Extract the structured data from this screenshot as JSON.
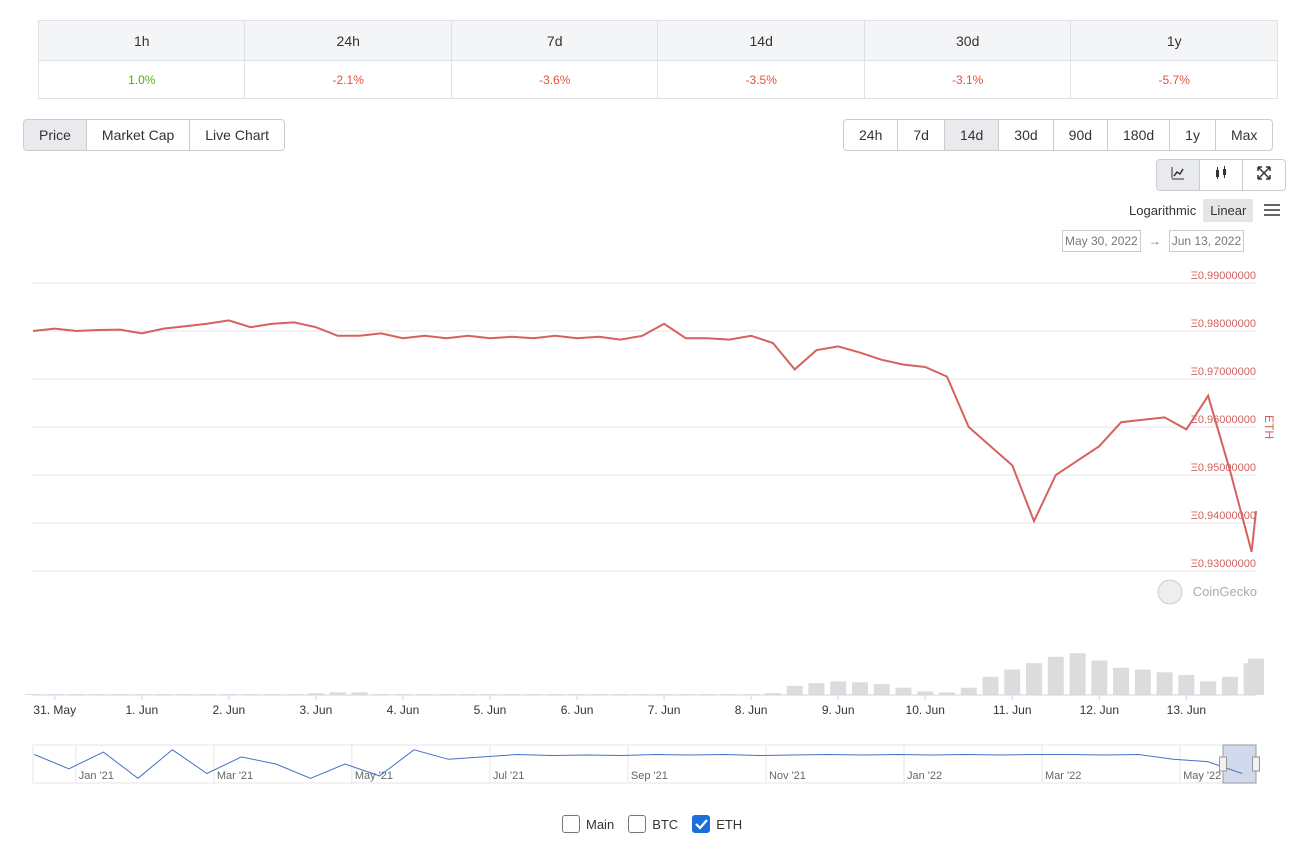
{
  "performance": {
    "headers": [
      "1h",
      "24h",
      "7d",
      "14d",
      "30d",
      "1y"
    ],
    "values": [
      "1.0%",
      "-2.1%",
      "-3.6%",
      "-3.5%",
      "-3.1%",
      "-5.7%"
    ],
    "value_colors": [
      "#4eaf0a",
      "#e15241",
      "#e15241",
      "#e15241",
      "#e15241",
      "#e15241"
    ]
  },
  "view_tabs": [
    "Price",
    "Market Cap",
    "Live Chart"
  ],
  "active_view": 0,
  "ranges": [
    "24h",
    "7d",
    "14d",
    "30d",
    "90d",
    "180d",
    "1y",
    "Max"
  ],
  "active_range": 2,
  "scale_options": [
    "Logarithmic",
    "Linear"
  ],
  "active_scale": 1,
  "date_from": "May 30, 2022",
  "date_arrow": "→",
  "date_to": "Jun 13, 2022",
  "watermark": "CoinGecko",
  "toggles": [
    {
      "label": "Main",
      "checked": false
    },
    {
      "label": "BTC",
      "checked": false
    },
    {
      "label": "ETH",
      "checked": true
    }
  ],
  "chart_data": {
    "type": "line",
    "y_axis_title": "ETH",
    "grid": true,
    "xlim": [
      -0.25,
      13.8
    ],
    "xticks": [
      {
        "value": 0,
        "label": "31. May"
      },
      {
        "value": 1,
        "label": "1. Jun"
      },
      {
        "value": 2,
        "label": "2. Jun"
      },
      {
        "value": 3,
        "label": "3. Jun"
      },
      {
        "value": 4,
        "label": "4. Jun"
      },
      {
        "value": 5,
        "label": "5. Jun"
      },
      {
        "value": 6,
        "label": "6. Jun"
      },
      {
        "value": 7,
        "label": "7. Jun"
      },
      {
        "value": 8,
        "label": "8. Jun"
      },
      {
        "value": 9,
        "label": "9. Jun"
      },
      {
        "value": 10,
        "label": "10. Jun"
      },
      {
        "value": 11,
        "label": "11. Jun"
      },
      {
        "value": 12,
        "label": "12. Jun"
      },
      {
        "value": 13,
        "label": "13. Jun"
      }
    ],
    "ylim": [
      0.93,
      0.99
    ],
    "yticks": [
      {
        "value": 0.99,
        "label": "Ξ0.99000000"
      },
      {
        "value": 0.98,
        "label": "Ξ0.98000000"
      },
      {
        "value": 0.97,
        "label": "Ξ0.97000000"
      },
      {
        "value": 0.96,
        "label": "Ξ0.96000000"
      },
      {
        "value": 0.95,
        "label": "Ξ0.95000000"
      },
      {
        "value": 0.94,
        "label": "Ξ0.94000000"
      },
      {
        "value": 0.93,
        "label": "Ξ0.93000000"
      }
    ],
    "x": [
      -0.25,
      0,
      0.25,
      0.5,
      0.75,
      1,
      1.25,
      1.5,
      1.75,
      2,
      2.25,
      2.5,
      2.75,
      3,
      3.25,
      3.5,
      3.75,
      4,
      4.25,
      4.5,
      4.75,
      5,
      5.25,
      5.5,
      5.75,
      6,
      6.25,
      6.5,
      6.75,
      7,
      7.25,
      7.5,
      7.75,
      8,
      8.25,
      8.5,
      8.75,
      9,
      9.25,
      9.5,
      9.75,
      10,
      10.25,
      10.5,
      10.75,
      11,
      11.25,
      11.5,
      11.75,
      12,
      12.25,
      12.5,
      12.75,
      13,
      13.25,
      13.5,
      13.75,
      13.8
    ],
    "series": [
      {
        "color": "#d4625e",
        "values": [
          0.98,
          0.9805,
          0.98,
          0.9802,
          0.9803,
          0.9795,
          0.9805,
          0.981,
          0.9815,
          0.9822,
          0.9808,
          0.9815,
          0.9818,
          0.9808,
          0.979,
          0.979,
          0.9795,
          0.9785,
          0.979,
          0.9785,
          0.979,
          0.9785,
          0.9788,
          0.9785,
          0.979,
          0.9785,
          0.9788,
          0.9782,
          0.979,
          0.9815,
          0.9785,
          0.9785,
          0.9782,
          0.979,
          0.9775,
          0.972,
          0.976,
          0.9768,
          0.9755,
          0.974,
          0.973,
          0.9725,
          0.9705,
          0.96,
          0.956,
          0.952,
          0.9404,
          0.95,
          0.953,
          0.956,
          0.961,
          0.9615,
          0.962,
          0.9595,
          0.9665,
          0.951,
          0.934,
          0.9425
        ]
      }
    ],
    "volume": {
      "color": "#dcdcdc",
      "ylim": [
        0,
        55
      ],
      "values": [
        1,
        1,
        1,
        1,
        1,
        1,
        1,
        1,
        1,
        1,
        1,
        1,
        1,
        2,
        3,
        3,
        1,
        1,
        1,
        1,
        1,
        1,
        1,
        1,
        1,
        1,
        1,
        1,
        1,
        1,
        1,
        1,
        1,
        1,
        2,
        10,
        13,
        15,
        14,
        12,
        8,
        4,
        3,
        8,
        20,
        28,
        35,
        42,
        46,
        38,
        30,
        28,
        25,
        22,
        15,
        20,
        35,
        40
      ]
    },
    "navigator": {
      "color": "#4572c4",
      "ylim": [
        0.92,
        1.0
      ],
      "xlim": [
        -0.62,
        17.1
      ],
      "xticks": [
        {
          "value": 0,
          "label": "Jan '21"
        },
        {
          "value": 2,
          "label": "Mar '21"
        },
        {
          "value": 4,
          "label": "May '21"
        },
        {
          "value": 6,
          "label": "Jul '21"
        },
        {
          "value": 8,
          "label": "Sep '21"
        },
        {
          "value": 10,
          "label": "Nov '21"
        },
        {
          "value": 12,
          "label": "Jan '22"
        },
        {
          "value": 14,
          "label": "Mar '22"
        },
        {
          "value": 16,
          "label": "May '22"
        }
      ],
      "x": [
        -0.6,
        -0.1,
        0.4,
        0.9,
        1.4,
        1.9,
        2.4,
        2.9,
        3.4,
        3.9,
        4.4,
        4.9,
        5.4,
        5.9,
        6.4,
        6.9,
        7.4,
        7.9,
        8.4,
        8.9,
        9.4,
        9.9,
        10.4,
        10.9,
        11.4,
        11.9,
        12.4,
        12.9,
        13.4,
        13.9,
        14.4,
        14.9,
        15.4,
        15.9,
        16.4,
        16.9
      ],
      "values": [
        0.98,
        0.95,
        0.985,
        0.93,
        0.99,
        0.94,
        0.975,
        0.96,
        0.93,
        0.96,
        0.935,
        0.99,
        0.97,
        0.975,
        0.98,
        0.978,
        0.979,
        0.978,
        0.98,
        0.979,
        0.98,
        0.978,
        0.979,
        0.98,
        0.979,
        0.98,
        0.979,
        0.98,
        0.979,
        0.98,
        0.98,
        0.979,
        0.98,
        0.97,
        0.965,
        0.94
      ]
    }
  }
}
